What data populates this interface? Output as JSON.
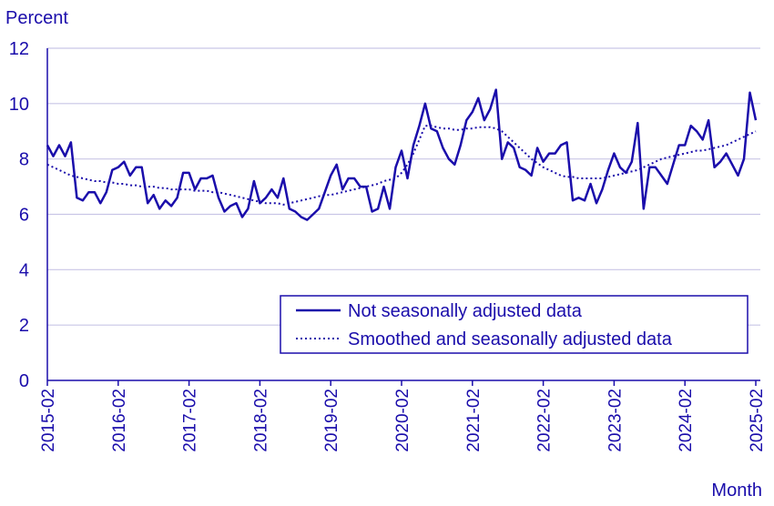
{
  "chart_data": {
    "type": "line",
    "title": "",
    "ylabel": "Percent",
    "xlabel": "Month",
    "ylim": [
      0,
      12
    ],
    "yticks": [
      0,
      2,
      4,
      6,
      8,
      10,
      12
    ],
    "x_tick_labels": [
      "2015-02",
      "2016-02",
      "2017-02",
      "2018-02",
      "2019-02",
      "2020-02",
      "2021-02",
      "2022-02",
      "2023-02",
      "2024-02",
      "2025-02"
    ],
    "grid": "horizontal",
    "legend_position": "bottom-right",
    "colors": {
      "series": "#1a0dab",
      "grid": "#c9c6e6",
      "text": "#1a0dab"
    },
    "x_start": "2015-02",
    "x_end": "2025-02",
    "series": [
      {
        "name": "Not seasonally adjusted data",
        "style": "solid",
        "values": [
          8.5,
          8.1,
          8.5,
          8.1,
          8.6,
          6.6,
          6.5,
          6.8,
          6.8,
          6.4,
          6.8,
          7.6,
          7.7,
          7.9,
          7.4,
          7.7,
          7.7,
          6.4,
          6.7,
          6.2,
          6.5,
          6.3,
          6.6,
          7.5,
          7.5,
          6.9,
          7.3,
          7.3,
          7.4,
          6.6,
          6.1,
          6.3,
          6.4,
          5.9,
          6.2,
          7.2,
          6.4,
          6.6,
          6.9,
          6.6,
          7.3,
          6.2,
          6.1,
          5.9,
          5.8,
          6.0,
          6.2,
          6.8,
          7.4,
          7.8,
          6.9,
          7.3,
          7.3,
          7.0,
          7.0,
          6.1,
          6.2,
          7.0,
          6.2,
          7.7,
          8.3,
          7.3,
          8.5,
          9.2,
          10.0,
          9.1,
          9.0,
          8.4,
          8.0,
          7.8,
          8.5,
          9.4,
          9.7,
          10.2,
          9.4,
          9.8,
          10.5,
          8.0,
          8.6,
          8.4,
          7.7,
          7.6,
          7.4,
          8.4,
          7.9,
          8.2,
          8.2,
          8.5,
          8.6,
          6.5,
          6.6,
          6.5,
          7.1,
          6.4,
          6.9,
          7.6,
          8.2,
          7.7,
          7.5,
          7.9,
          9.3,
          6.2,
          7.7,
          7.7,
          7.4,
          7.1,
          7.8,
          8.5,
          8.5,
          9.2,
          9.0,
          8.7,
          9.4,
          7.7,
          7.9,
          8.2,
          7.8,
          7.4,
          8.0,
          10.4,
          9.4
        ]
      },
      {
        "name": "Smoothed and seasonally adjusted data",
        "style": "dotted",
        "values": [
          7.8,
          7.7,
          7.6,
          7.5,
          7.4,
          7.35,
          7.3,
          7.25,
          7.2,
          7.2,
          7.15,
          7.15,
          7.1,
          7.1,
          7.05,
          7.05,
          7.0,
          7.0,
          7.0,
          6.95,
          6.95,
          6.9,
          6.9,
          6.9,
          6.9,
          6.85,
          6.85,
          6.85,
          6.8,
          6.8,
          6.75,
          6.7,
          6.65,
          6.6,
          6.55,
          6.5,
          6.45,
          6.4,
          6.4,
          6.4,
          6.35,
          6.4,
          6.45,
          6.5,
          6.55,
          6.6,
          6.65,
          6.7,
          6.7,
          6.75,
          6.8,
          6.85,
          6.9,
          6.95,
          7.0,
          7.05,
          7.1,
          7.2,
          7.25,
          7.3,
          7.5,
          7.8,
          8.2,
          8.7,
          9.2,
          9.2,
          9.15,
          9.1,
          9.1,
          9.05,
          9.05,
          9.1,
          9.1,
          9.15,
          9.15,
          9.15,
          9.1,
          9.0,
          8.8,
          8.6,
          8.4,
          8.2,
          8.0,
          7.85,
          7.7,
          7.6,
          7.5,
          7.4,
          7.35,
          7.35,
          7.3,
          7.3,
          7.3,
          7.3,
          7.3,
          7.35,
          7.4,
          7.45,
          7.5,
          7.55,
          7.6,
          7.7,
          7.8,
          7.9,
          8.0,
          8.05,
          8.1,
          8.15,
          8.2,
          8.25,
          8.3,
          8.3,
          8.35,
          8.4,
          8.45,
          8.5,
          8.6,
          8.7,
          8.8,
          8.9,
          9.0
        ]
      }
    ]
  }
}
